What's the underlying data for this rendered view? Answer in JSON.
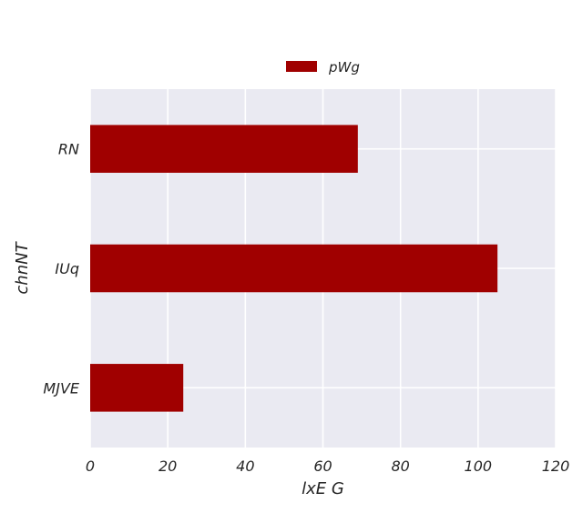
{
  "chart_data": {
    "type": "bar",
    "orientation": "horizontal",
    "categories": [
      "RN",
      "IUq",
      "MJVE"
    ],
    "series": [
      {
        "name": "pWg",
        "values": [
          69,
          105,
          24
        ]
      }
    ],
    "title": "",
    "xlabel": "lxE G",
    "ylabel": "chnNT",
    "xlim": [
      0,
      120
    ],
    "xticks": [
      0,
      20,
      40,
      60,
      80,
      100,
      120
    ],
    "grid": true,
    "legend": {
      "position": "top-center",
      "label": "pWg"
    },
    "colors": {
      "bar": "#a00000",
      "plot_background": "#eaeaf2",
      "grid": "#ffffff"
    }
  }
}
